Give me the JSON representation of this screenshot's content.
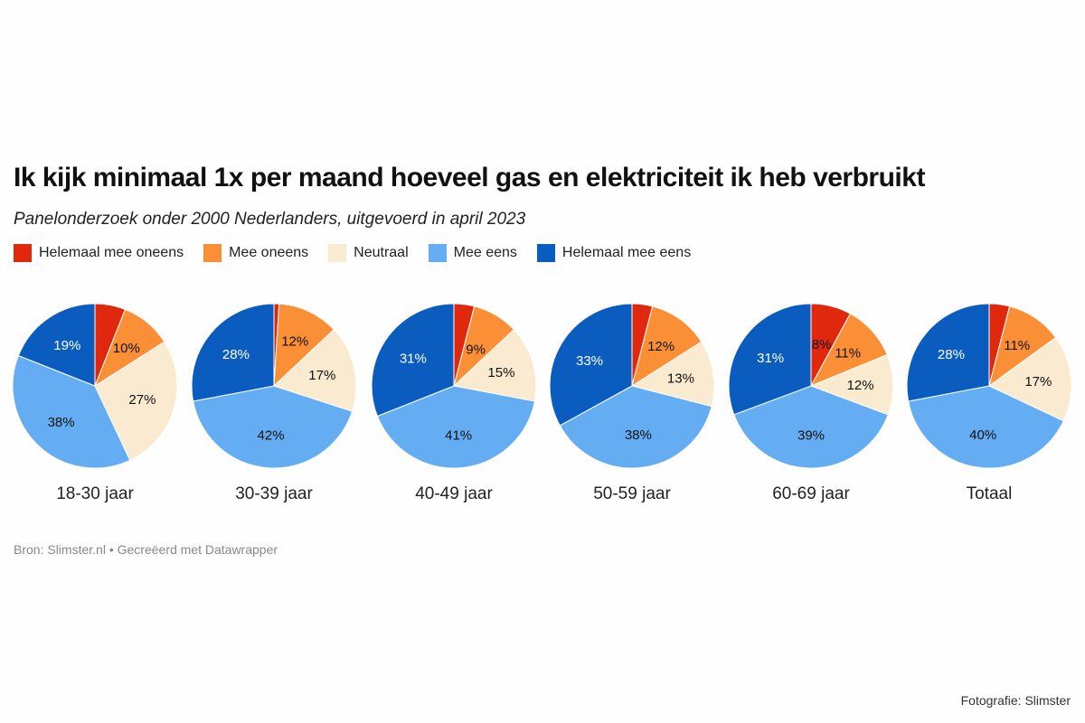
{
  "chart_data": {
    "type": "pie",
    "title": "Ik kijk minimaal 1x per maand hoeveel gas en elektriciteit ik heb verbruikt",
    "subtitle": "Panelonderzoek onder 2000 Nederlanders, uitgevoerd in april 2023",
    "legend": [
      {
        "label": "Helemaal mee oneens",
        "color": "#e0280f"
      },
      {
        "label": "Mee oneens",
        "color": "#fb8f35"
      },
      {
        "label": "Neutraal",
        "color": "#faeacf"
      },
      {
        "label": "Mee eens",
        "color": "#65adf2"
      },
      {
        "label": "Helemaal mee eens",
        "color": "#0a5dbf"
      }
    ],
    "legend_position": "top-left",
    "label_colors": [
      "#111111",
      "#111111",
      "#111111",
      "#111111",
      "#ffffff"
    ],
    "pies": [
      {
        "category": "18-30 jaar",
        "values": [
          6,
          10,
          27,
          38,
          19
        ],
        "labels": [
          "",
          "10%",
          "27%",
          "38%",
          "19%"
        ]
      },
      {
        "category": "30-39 jaar",
        "values": [
          1,
          12,
          17,
          42,
          28
        ],
        "labels": [
          "",
          "12%",
          "17%",
          "42%",
          "28%"
        ]
      },
      {
        "category": "40-49 jaar",
        "values": [
          4,
          9,
          15,
          41,
          31
        ],
        "labels": [
          "",
          "9%",
          "15%",
          "41%",
          "31%"
        ]
      },
      {
        "category": "50-59 jaar",
        "values": [
          4,
          12,
          13,
          38,
          33
        ],
        "labels": [
          "",
          "12%",
          "13%",
          "38%",
          "33%"
        ]
      },
      {
        "category": "60-69 jaar",
        "values": [
          8,
          11,
          12,
          39,
          31
        ],
        "labels": [
          "8%",
          "11%",
          "12%",
          "39%",
          "31%"
        ]
      },
      {
        "category": "Totaal",
        "values": [
          4,
          11,
          17,
          40,
          28
        ],
        "labels": [
          "",
          "11%",
          "17%",
          "40%",
          "28%"
        ]
      }
    ]
  },
  "footer": "Bron: Slimster.nl • Gecreëerd met Datawrapper",
  "credit": "Fotografie: Slimster"
}
